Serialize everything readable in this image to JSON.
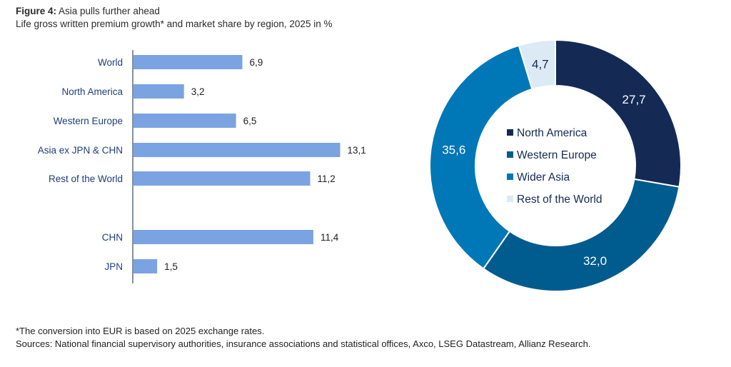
{
  "header": {
    "figure_label": "Figure 4:",
    "title": "Asia pulls further ahead",
    "subtitle": "Life gross written premium growth* and market share by region, 2025 in %"
  },
  "chart_data": [
    {
      "type": "bar",
      "orientation": "horizontal",
      "categories": [
        "World",
        "North America",
        "Western Europe",
        "Asia ex JPN & CHN",
        "Rest of the World",
        "CHN",
        "JPN"
      ],
      "values": [
        6.9,
        3.2,
        6.5,
        13.1,
        11.2,
        11.4,
        1.5
      ],
      "value_labels": [
        "6,9",
        "3,2",
        "6,5",
        "13,1",
        "11,2",
        "11,4",
        "1,5"
      ],
      "bar_color": "#7ba3e1",
      "xlim": [
        0,
        14
      ],
      "grid": false
    },
    {
      "type": "pie",
      "variant": "donut",
      "labels": [
        "North America",
        "Western Europe",
        "Wider Asia",
        "Rest of the World"
      ],
      "values": [
        27.7,
        32.0,
        35.6,
        4.7
      ],
      "value_labels": [
        "27,7",
        "32,0",
        "35,6",
        "4,7"
      ],
      "colors": [
        "#142a55",
        "#005b8e",
        "#0077b6",
        "#dceaf5"
      ],
      "label_colors": [
        "#ffffff",
        "#ffffff",
        "#ffffff",
        "#142a55"
      ],
      "legend_position": "center"
    }
  ],
  "footer": {
    "note": "*The conversion into EUR is based on 2025 exchange rates.",
    "sources": "Sources: National financial supervisory authorities, insurance associations and statistical offices, Axco, LSEG Datastream, Allianz Research."
  }
}
